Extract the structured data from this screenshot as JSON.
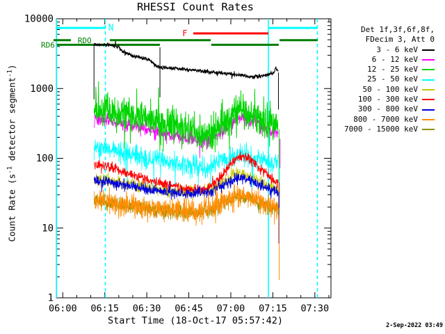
{
  "title": "RHESSI Count Rates",
  "timestamp": "2-Sep-2022 03:49",
  "chart_data": {
    "type": "line",
    "title": "RHESSI Count Rates",
    "xlabel": "Start Time (18-Oct-17 05:57:42)",
    "ylabel_prefix": "Count Rate (s",
    "ylabel_sup1": "-1",
    "ylabel_mid": " detector segment",
    "ylabel_sup2": "-1",
    "ylabel_suffix": ")",
    "ylim": [
      1,
      10000
    ],
    "x_range_min": [
      -2.3,
      95.75
    ],
    "x_major_ticks": [
      {
        "t": 0,
        "label": "06:00"
      },
      {
        "t": 15,
        "label": "06:15"
      },
      {
        "t": 30,
        "label": "06:30"
      },
      {
        "t": 45,
        "label": "06:45"
      },
      {
        "t": 60,
        "label": "07:00"
      },
      {
        "t": 75,
        "label": "07:15"
      },
      {
        "t": 90,
        "label": "07:30"
      }
    ],
    "x_minor_step_min": 5,
    "y_major_ticks": [
      {
        "v": 1,
        "label": "1"
      },
      {
        "v": 10,
        "label": "10"
      },
      {
        "v": 100,
        "label": "100"
      },
      {
        "v": 1000,
        "label": "1000"
      },
      {
        "v": 10000,
        "label": "10000"
      }
    ],
    "legend_header": [
      "Det 1f,3f,6f,8f,",
      "FDecim 3, Att 0"
    ],
    "draw_order": [
      0,
      1,
      2,
      4,
      8,
      3,
      5,
      6,
      7
    ],
    "series": [
      {
        "name": "3 - 6 keV",
        "color": "#000000",
        "sigma": 0.013,
        "spike": {
          "p": 0.02,
          "amp": 0.05,
          "down": 0.5
        },
        "width": 1.1,
        "points": [
          [
            11.2,
            4250
          ],
          [
            14,
            4250
          ],
          [
            17.3,
            4200
          ],
          [
            19.8,
            4000
          ],
          [
            21,
            3500
          ],
          [
            23,
            3200
          ],
          [
            24.8,
            2950
          ],
          [
            28.5,
            2750
          ],
          [
            31,
            2550
          ],
          [
            32.7,
            2200
          ],
          [
            33.9,
            2050
          ],
          [
            34.7,
            2000
          ],
          [
            37,
            1980
          ],
          [
            40,
            1950
          ],
          [
            44.6,
            1850
          ],
          [
            49.6,
            1780
          ],
          [
            54.5,
            1700
          ],
          [
            59.5,
            1620
          ],
          [
            63.2,
            1560
          ],
          [
            66,
            1500
          ],
          [
            68.2,
            1480
          ],
          [
            70.7,
            1510
          ],
          [
            73.2,
            1580
          ],
          [
            74.9,
            1680
          ],
          [
            75.7,
            1750
          ],
          [
            75.9,
            2050
          ],
          [
            76.3,
            1900
          ],
          [
            76.9,
            1720
          ]
        ],
        "drops": [
          {
            "t": 11.15,
            "top": 4300,
            "bottom": 700
          },
          {
            "t": 34.7,
            "top": 3900,
            "bottom": 750
          },
          {
            "t": 77.0,
            "top": 1700,
            "bottom": 500
          }
        ]
      },
      {
        "name": "6 - 12 keV",
        "color": "#ff00ff",
        "sigma": 0.05,
        "spike": {
          "p": 0.05,
          "amp": 0.2,
          "down": 0.8
        },
        "width": 0.8,
        "points": [
          [
            11.2,
            375
          ],
          [
            14.8,
            360
          ],
          [
            17.3,
            345
          ],
          [
            22.3,
            310
          ],
          [
            27.2,
            280
          ],
          [
            32,
            245
          ],
          [
            37,
            220
          ],
          [
            42,
            200
          ],
          [
            47,
            195
          ],
          [
            50,
            180
          ],
          [
            52,
            180
          ],
          [
            54.5,
            205
          ],
          [
            57,
            252
          ],
          [
            59.5,
            312
          ],
          [
            61.5,
            362
          ],
          [
            63.2,
            388
          ],
          [
            64.5,
            392
          ],
          [
            66,
            371
          ],
          [
            68.2,
            330
          ],
          [
            70.7,
            287
          ],
          [
            72.4,
            262
          ],
          [
            74.4,
            240
          ],
          [
            76,
            228
          ],
          [
            76.9,
            220
          ]
        ],
        "drops": [
          {
            "t": 77.55,
            "top": 190,
            "bottom": 72
          }
        ]
      },
      {
        "name": "12 - 25 keV",
        "color": "#00d400",
        "sigma": 0.12,
        "spike": {
          "p": 0.12,
          "amp": 0.35,
          "down": 0.45
        },
        "width": 1.0,
        "points": [
          [
            11.2,
            520
          ],
          [
            14.8,
            500
          ],
          [
            17.3,
            480
          ],
          [
            22.3,
            430
          ],
          [
            27.2,
            390
          ],
          [
            32,
            340
          ],
          [
            37,
            305
          ],
          [
            42,
            275
          ],
          [
            47,
            235
          ],
          [
            50,
            215
          ],
          [
            52,
            215
          ],
          [
            54.5,
            245
          ],
          [
            57,
            300
          ],
          [
            59.5,
            370
          ],
          [
            61.5,
            430
          ],
          [
            63.2,
            460
          ],
          [
            64.5,
            465
          ],
          [
            66,
            440
          ],
          [
            68.2,
            390
          ],
          [
            70.7,
            340
          ],
          [
            72.4,
            310
          ],
          [
            74.4,
            285
          ],
          [
            76,
            270
          ],
          [
            76.9,
            260
          ]
        ],
        "drops": [
          {
            "t": 77.2,
            "top": 260,
            "bottom": 38
          }
        ]
      },
      {
        "name": "25 - 50 keV",
        "color": "#00ffff",
        "sigma": 0.075,
        "spike": {
          "p": 0.035,
          "amp": 0.5,
          "down": 0.95
        },
        "width": 0.85,
        "points": [
          [
            11.2,
            150
          ],
          [
            14.8,
            143
          ],
          [
            17.3,
            134
          ],
          [
            22.3,
            120
          ],
          [
            27.2,
            107
          ],
          [
            32,
            97
          ],
          [
            37,
            90
          ],
          [
            42,
            83
          ],
          [
            47,
            79
          ],
          [
            50,
            77
          ],
          [
            52,
            78
          ],
          [
            54.5,
            84
          ],
          [
            57,
            93
          ],
          [
            59.5,
            101
          ],
          [
            61.5,
            106
          ],
          [
            63.2,
            108
          ],
          [
            64.5,
            107
          ],
          [
            66,
            104
          ],
          [
            68.2,
            98
          ],
          [
            70.7,
            93
          ],
          [
            72.4,
            90
          ],
          [
            74.4,
            87
          ],
          [
            76.9,
            85
          ]
        ],
        "drops": [
          {
            "t": 77.35,
            "top": 85,
            "bottom": 16
          }
        ]
      },
      {
        "name": "50 - 100 keV",
        "color": "#c6c600",
        "sigma": 0.045,
        "spike": {
          "p": 0.04,
          "amp": 0.1,
          "down": 0.5
        },
        "width": 0.8,
        "points": [
          [
            11.2,
            50
          ],
          [
            17.3,
            47
          ],
          [
            22.3,
            43
          ],
          [
            27.2,
            40
          ],
          [
            32,
            36.5
          ],
          [
            37,
            34.5
          ],
          [
            42,
            33.5
          ],
          [
            47,
            33
          ],
          [
            52,
            35
          ],
          [
            54.5,
            39
          ],
          [
            57,
            45
          ],
          [
            59.5,
            52
          ],
          [
            61.5,
            57
          ],
          [
            63.2,
            60
          ],
          [
            64.5,
            60
          ],
          [
            66,
            57
          ],
          [
            68.2,
            52
          ],
          [
            70.7,
            46
          ],
          [
            72.4,
            42
          ],
          [
            74.4,
            39
          ],
          [
            76.9,
            37
          ]
        ],
        "drops": [
          {
            "t": 77.1,
            "top": 37,
            "bottom": 14
          }
        ]
      },
      {
        "name": "100 - 300 keV",
        "color": "#ff0000",
        "sigma": 0.035,
        "spike": {
          "p": 0.03,
          "amp": 0.1,
          "down": 0.5
        },
        "width": 0.9,
        "points": [
          [
            11.2,
            82
          ],
          [
            14.8,
            80
          ],
          [
            17.3,
            74
          ],
          [
            22.3,
            63
          ],
          [
            27.2,
            54
          ],
          [
            32,
            47
          ],
          [
            37,
            42
          ],
          [
            42,
            38
          ],
          [
            47,
            36
          ],
          [
            50,
            36
          ],
          [
            52,
            37
          ],
          [
            54.5,
            44
          ],
          [
            57,
            58
          ],
          [
            59.5,
            78
          ],
          [
            61.5,
            95
          ],
          [
            63.2,
            103
          ],
          [
            64.5,
            105
          ],
          [
            66,
            101
          ],
          [
            68.2,
            86
          ],
          [
            70.7,
            69
          ],
          [
            72.4,
            60
          ],
          [
            74.4,
            52
          ],
          [
            76,
            47
          ],
          [
            76.9,
            45
          ]
        ],
        "drops": [
          {
            "t": 77.25,
            "top": 45,
            "bottom": 12
          }
        ]
      },
      {
        "name": "300 - 800 keV",
        "color": "#0000dd",
        "sigma": 0.04,
        "spike": {
          "p": 0.04,
          "amp": 0.12,
          "down": 0.5
        },
        "width": 0.9,
        "points": [
          [
            11.2,
            48
          ],
          [
            17.3,
            45
          ],
          [
            22.3,
            41
          ],
          [
            27.2,
            38
          ],
          [
            32,
            35
          ],
          [
            37,
            33
          ],
          [
            42,
            32
          ],
          [
            47,
            31.5
          ],
          [
            52,
            33
          ],
          [
            54.5,
            36
          ],
          [
            57,
            41
          ],
          [
            59.5,
            46
          ],
          [
            61.5,
            50
          ],
          [
            63.2,
            52
          ],
          [
            64.5,
            52
          ],
          [
            66,
            50
          ],
          [
            68.2,
            46
          ],
          [
            70.7,
            41
          ],
          [
            72.4,
            38
          ],
          [
            74.4,
            35
          ],
          [
            76.9,
            33
          ]
        ],
        "drops": [
          {
            "t": 77.15,
            "top": 33,
            "bottom": 6
          }
        ]
      },
      {
        "name": "800 - 7000 keV",
        "color": "#ff8c00",
        "sigma": 0.08,
        "spike": {
          "p": 0.07,
          "amp": 0.18,
          "down": 0.6
        },
        "width": 0.9,
        "points": [
          [
            11.2,
            26
          ],
          [
            17.3,
            24
          ],
          [
            22.3,
            22
          ],
          [
            27.2,
            20.5
          ],
          [
            32,
            19
          ],
          [
            37,
            18.2
          ],
          [
            42,
            17.8
          ],
          [
            47,
            17.5
          ],
          [
            52,
            18.5
          ],
          [
            54.5,
            20.5
          ],
          [
            57,
            23.5
          ],
          [
            59.5,
            26.5
          ],
          [
            61.5,
            28.5
          ],
          [
            63.2,
            29.5
          ],
          [
            64.5,
            29.5
          ],
          [
            66,
            28.5
          ],
          [
            68.2,
            26
          ],
          [
            70.7,
            23
          ],
          [
            72.4,
            21.5
          ],
          [
            74.4,
            20.3
          ],
          [
            76.9,
            19.5
          ]
        ],
        "drops": [
          {
            "t": 77.3,
            "top": 19.5,
            "bottom": 1.8
          }
        ]
      },
      {
        "name": "7000 - 15000 keV",
        "color": "#8f8f00",
        "sigma": 0.05,
        "spike": {
          "p": 0.03,
          "amp": 0.1,
          "down": 0.5
        },
        "width": 0.8,
        "points": [
          [
            11.2,
            24.7
          ],
          [
            17.3,
            22.8
          ],
          [
            22.3,
            20.9
          ],
          [
            27.2,
            19.5
          ],
          [
            32,
            18
          ],
          [
            37,
            17.3
          ],
          [
            42,
            16.9
          ],
          [
            47,
            16.6
          ],
          [
            52,
            17.6
          ],
          [
            54.5,
            19.5
          ],
          [
            57,
            22.3
          ],
          [
            59.5,
            25.2
          ],
          [
            61.5,
            27
          ],
          [
            63.2,
            28
          ],
          [
            64.5,
            28
          ],
          [
            66,
            27
          ],
          [
            68.2,
            24.7
          ],
          [
            70.7,
            21.9
          ],
          [
            72.4,
            20.4
          ],
          [
            74.4,
            19.3
          ],
          [
            76.9,
            18.5
          ]
        ],
        "drops": []
      }
    ],
    "annotations": {
      "bars": [
        {
          "label": "N",
          "color": "#00ffff",
          "level": 7400,
          "segments_min": [
            [
              -2.1,
              15.3
            ],
            [
              73.6,
              91.0
            ]
          ],
          "label_t": 17.2,
          "font": 13
        },
        {
          "label": "F",
          "color": "#ff0000",
          "level": 6180,
          "segments_min": [
            [
              46.6,
              73.4
            ]
          ],
          "label_t": 43.6,
          "font": 12
        },
        {
          "label": "RDO",
          "color": "#007d00",
          "level": 4930,
          "segments_min": [
            [
              -3.3,
              2.9
            ],
            [
              16.8,
              52.8
            ],
            [
              77.4,
              91.0
            ]
          ],
          "label_t": 7.8,
          "font": 11
        },
        {
          "label": "RD6",
          "color": "#007d00",
          "level": 4240,
          "segments_min": [
            [
              -2.1,
              34.7
            ],
            [
              53.0,
              77.1
            ]
          ],
          "label_t": -5.3,
          "font": 11
        }
      ],
      "vlines": [
        {
          "t": -2.2,
          "style": "solid",
          "color": "#00ffff"
        },
        {
          "t": 15.2,
          "style": "dashed",
          "color": "#00ffff"
        },
        {
          "t": 73.4,
          "style": "solid",
          "color": "#00ffff"
        },
        {
          "t": 90.9,
          "style": "dashed",
          "color": "#00ffff"
        }
      ]
    }
  }
}
